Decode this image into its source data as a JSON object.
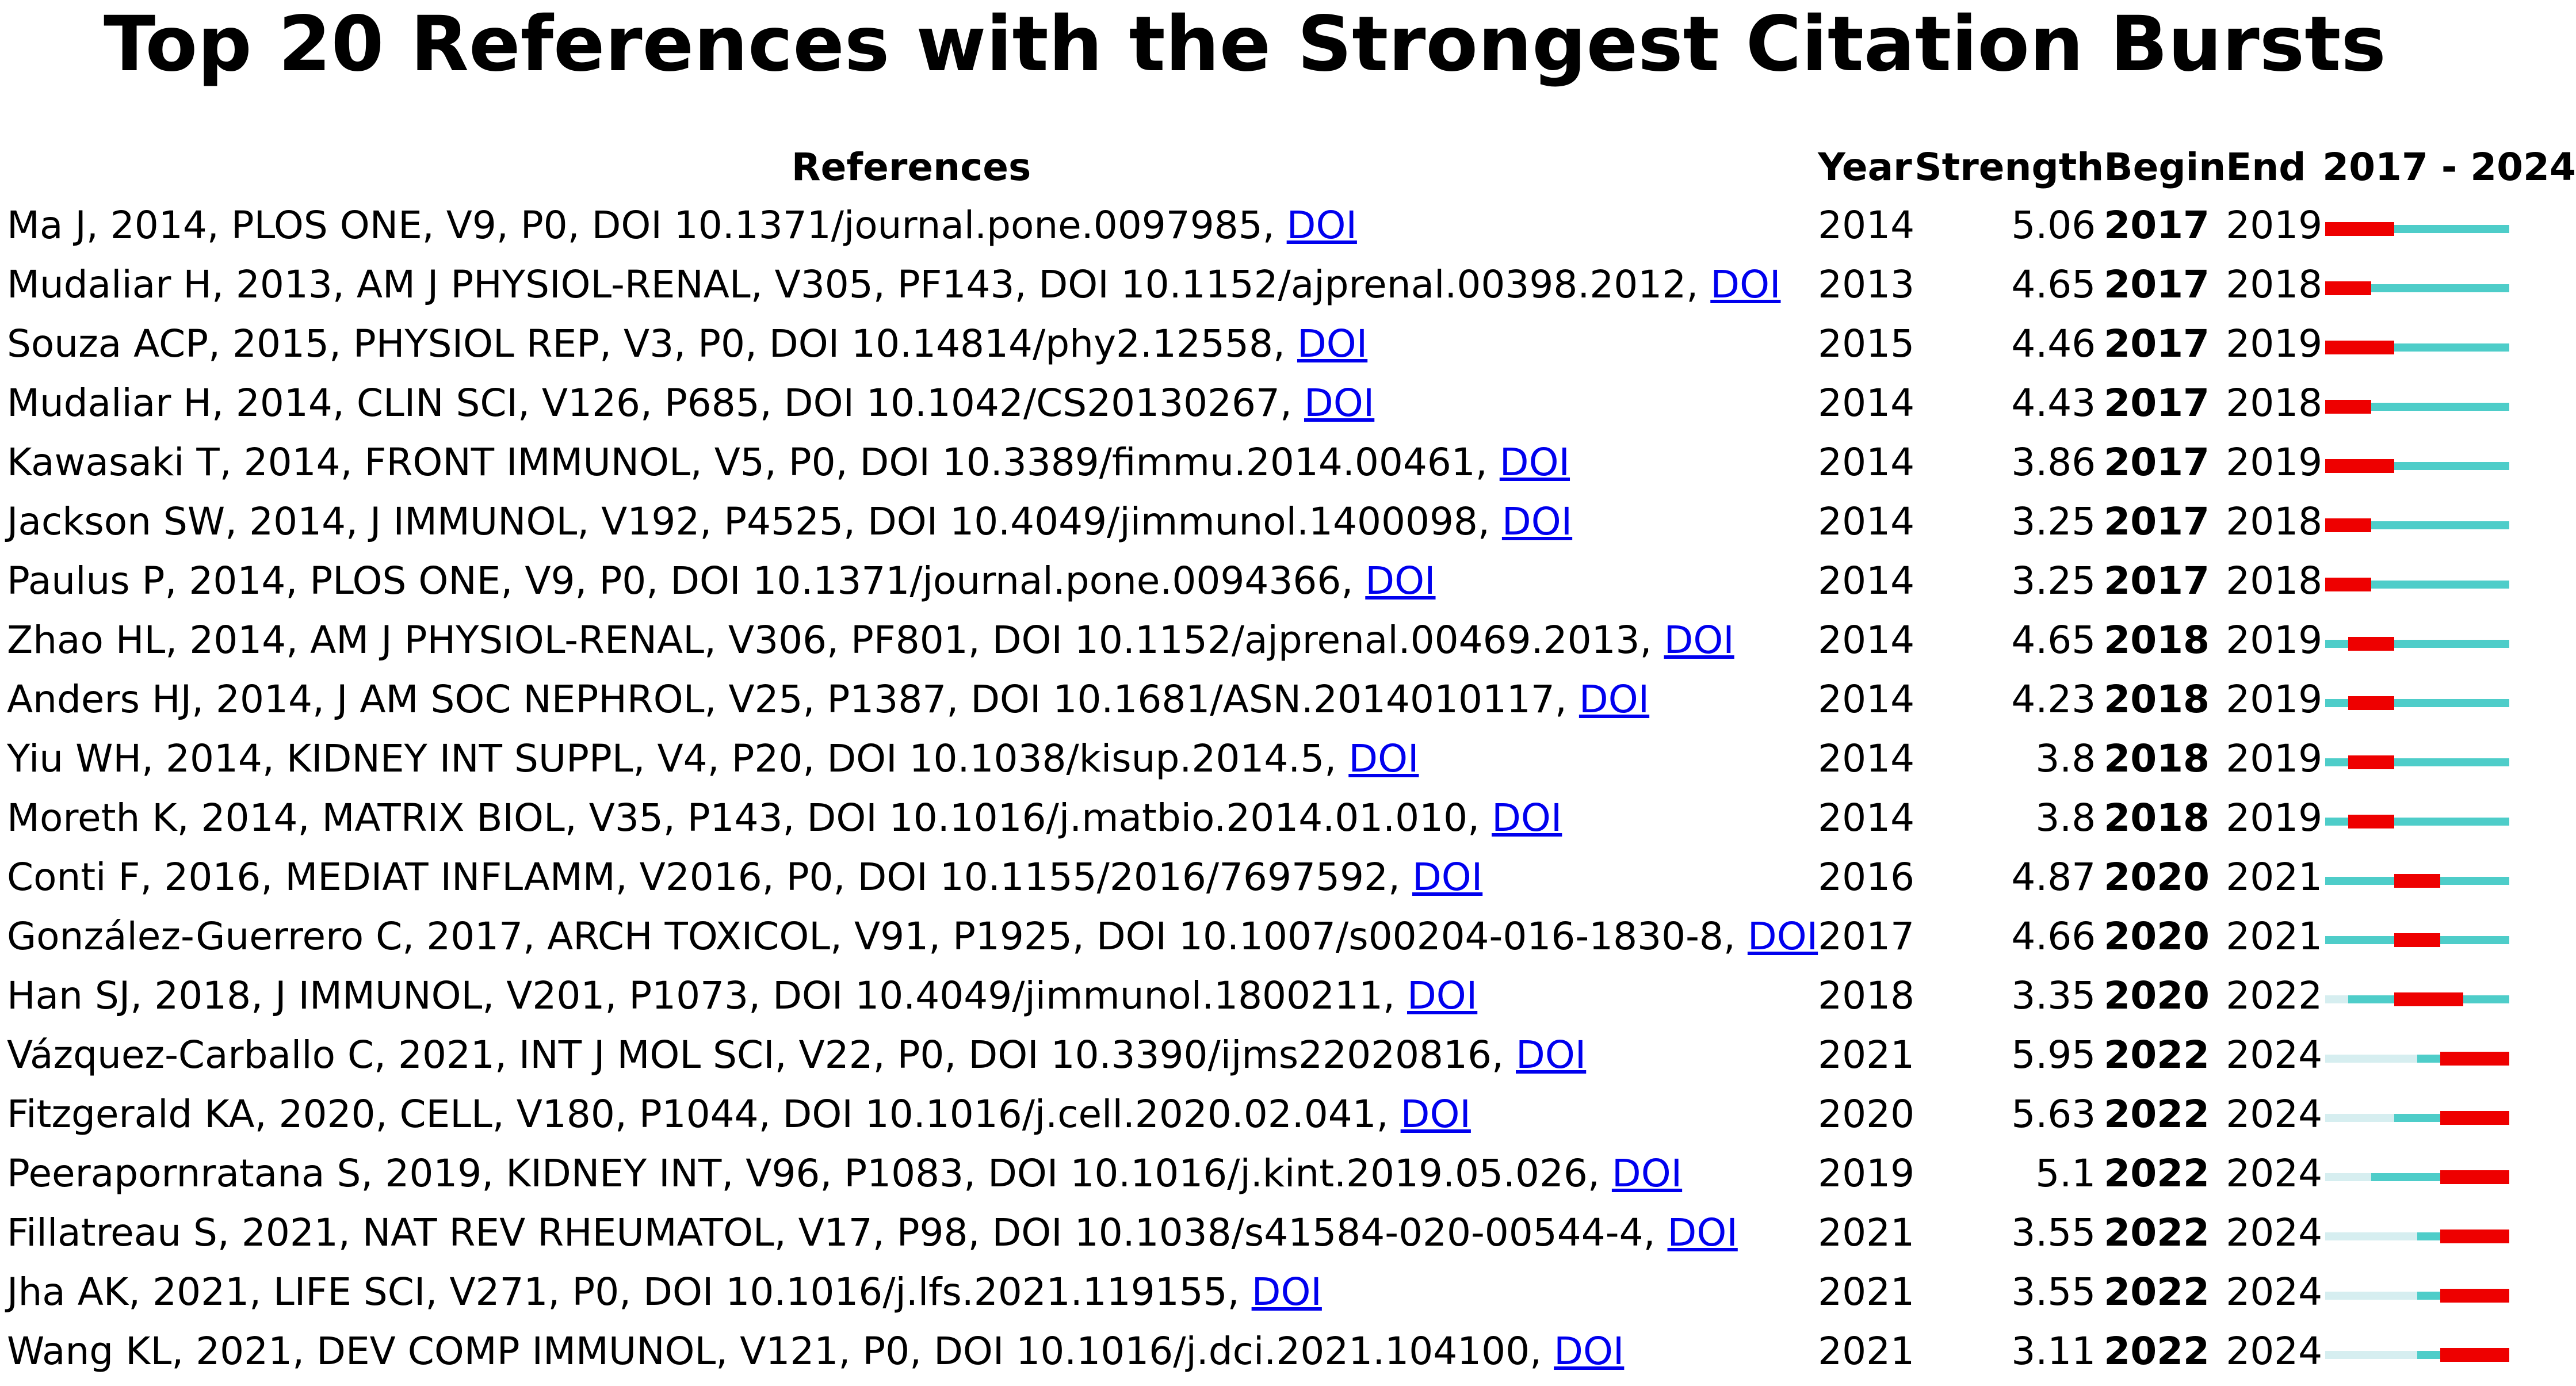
{
  "title": "Top 20 References with the Strongest Citation Bursts",
  "headers": {
    "references": "References",
    "year": "Year",
    "strength": "Strength",
    "begin": "Begin",
    "end": "End",
    "range": "2017 - 2024"
  },
  "chart_data": {
    "type": "table",
    "title": "Top 20 References with the Strongest Citation Bursts",
    "timeline": {
      "start": 2017,
      "end": 2024
    },
    "colors": {
      "burst": "#ee0000",
      "active": "#4ecdc9",
      "inactive": "#d6eef0"
    },
    "rows": [
      {
        "reference": "Ma J, 2014, PLOS ONE, V9, P0, DOI 10.1371/journal.pone.0097985,",
        "link": "DOI",
        "year": 2014,
        "strength": 5.06,
        "begin": 2017,
        "end": 2019
      },
      {
        "reference": "Mudaliar H, 2013, AM J PHYSIOL-RENAL, V305, PF143, DOI 10.1152/ajprenal.00398.2012,",
        "link": "DOI",
        "year": 2013,
        "strength": 4.65,
        "begin": 2017,
        "end": 2018
      },
      {
        "reference": "Souza ACP, 2015, PHYSIOL REP, V3, P0, DOI 10.14814/phy2.12558,",
        "link": "DOI",
        "year": 2015,
        "strength": 4.46,
        "begin": 2017,
        "end": 2019
      },
      {
        "reference": "Mudaliar H, 2014, CLIN SCI, V126, P685, DOI 10.1042/CS20130267,",
        "link": "DOI",
        "year": 2014,
        "strength": 4.43,
        "begin": 2017,
        "end": 2018
      },
      {
        "reference": "Kawasaki T, 2014, FRONT IMMUNOL, V5, P0, DOI 10.3389/fimmu.2014.00461,",
        "link": "DOI",
        "year": 2014,
        "strength": 3.86,
        "begin": 2017,
        "end": 2019
      },
      {
        "reference": "Jackson SW, 2014, J IMMUNOL, V192, P4525, DOI 10.4049/jimmunol.1400098,",
        "link": "DOI",
        "year": 2014,
        "strength": 3.25,
        "begin": 2017,
        "end": 2018
      },
      {
        "reference": "Paulus P, 2014, PLOS ONE, V9, P0, DOI 10.1371/journal.pone.0094366,",
        "link": "DOI",
        "year": 2014,
        "strength": 3.25,
        "begin": 2017,
        "end": 2018
      },
      {
        "reference": "Zhao HL, 2014, AM J PHYSIOL-RENAL, V306, PF801, DOI 10.1152/ajprenal.00469.2013,",
        "link": "DOI",
        "year": 2014,
        "strength": 4.65,
        "begin": 2018,
        "end": 2019
      },
      {
        "reference": "Anders HJ, 2014, J AM SOC NEPHROL, V25, P1387, DOI 10.1681/ASN.2014010117,",
        "link": "DOI",
        "year": 2014,
        "strength": 4.23,
        "begin": 2018,
        "end": 2019
      },
      {
        "reference": "Yiu WH, 2014, KIDNEY INT SUPPL, V4, P20, DOI 10.1038/kisup.2014.5,",
        "link": "DOI",
        "year": 2014,
        "strength": 3.8,
        "begin": 2018,
        "end": 2019
      },
      {
        "reference": "Moreth K, 2014, MATRIX BIOL, V35, P143, DOI 10.1016/j.matbio.2014.01.010,",
        "link": "DOI",
        "year": 2014,
        "strength": 3.8,
        "begin": 2018,
        "end": 2019
      },
      {
        "reference": "Conti F, 2016, MEDIAT INFLAMM, V2016, P0, DOI 10.1155/2016/7697592,",
        "link": "DOI",
        "year": 2016,
        "strength": 4.87,
        "begin": 2020,
        "end": 2021
      },
      {
        "reference": "González-Guerrero C, 2017, ARCH TOXICOL, V91, P1925, DOI 10.1007/s00204-016-1830-8,",
        "link": "DOI",
        "year": 2017,
        "strength": 4.66,
        "begin": 2020,
        "end": 2021
      },
      {
        "reference": "Han SJ, 2018, J IMMUNOL, V201, P1073, DOI 10.4049/jimmunol.1800211,",
        "link": "DOI",
        "year": 2018,
        "strength": 3.35,
        "begin": 2020,
        "end": 2022
      },
      {
        "reference": "Vázquez-Carballo C, 2021, INT J MOL SCI, V22, P0, DOI 10.3390/ijms22020816,",
        "link": "DOI",
        "year": 2021,
        "strength": 5.95,
        "begin": 2022,
        "end": 2024
      },
      {
        "reference": "Fitzgerald KA, 2020, CELL, V180, P1044, DOI 10.1016/j.cell.2020.02.041,",
        "link": "DOI",
        "year": 2020,
        "strength": 5.63,
        "begin": 2022,
        "end": 2024
      },
      {
        "reference": "Peerapornratana S, 2019, KIDNEY INT, V96, P1083, DOI 10.1016/j.kint.2019.05.026,",
        "link": "DOI",
        "year": 2019,
        "strength": 5.1,
        "begin": 2022,
        "end": 2024
      },
      {
        "reference": "Fillatreau S, 2021, NAT REV RHEUMATOL, V17, P98, DOI 10.1038/s41584-020-00544-4,",
        "link": "DOI",
        "year": 2021,
        "strength": 3.55,
        "begin": 2022,
        "end": 2024
      },
      {
        "reference": "Jha AK, 2021, LIFE SCI, V271, P0, DOI 10.1016/j.lfs.2021.119155,",
        "link": "DOI",
        "year": 2021,
        "strength": 3.55,
        "begin": 2022,
        "end": 2024
      },
      {
        "reference": "Wang KL, 2021, DEV COMP IMMUNOL, V121, P0, DOI 10.1016/j.dci.2021.104100,",
        "link": "DOI",
        "year": 2021,
        "strength": 3.11,
        "begin": 2022,
        "end": 2024
      }
    ]
  }
}
